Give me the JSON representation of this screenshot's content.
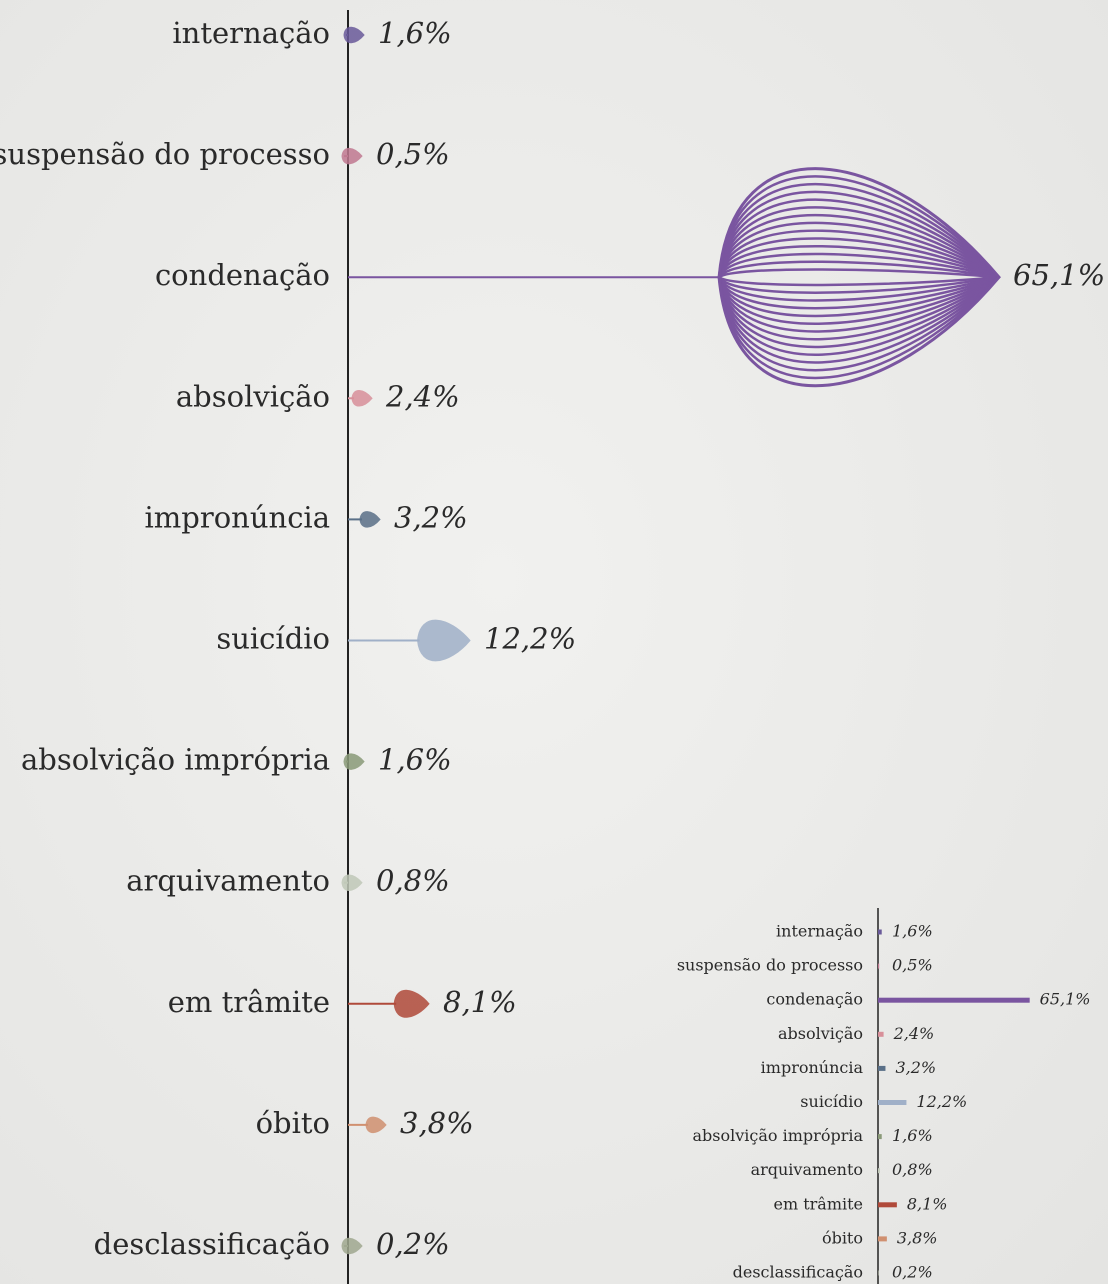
{
  "chart_data": [
    {
      "type": "petal",
      "categories": [
        "internação",
        "suspensão do processo",
        "condenação",
        "absolvição",
        "impronúncia",
        "suicídio",
        "absolvição imprópria",
        "arquivamento",
        "em trâmite",
        "óbito",
        "desclassificação"
      ],
      "values": [
        1.6,
        0.5,
        65.1,
        2.4,
        3.2,
        12.2,
        1.6,
        0.8,
        8.1,
        3.8,
        0.2
      ],
      "value_labels": [
        "1,6%",
        "0,5%",
        "65,1%",
        "2,4%",
        "3,2%",
        "12,2%",
        "1,6%",
        "0,8%",
        "8,1%",
        "3,8%",
        "0,2%"
      ],
      "colors": [
        "#6a5a9a",
        "#c07890",
        "#7a55a0",
        "#d8909a",
        "#5a7088",
        "#a0b0c8",
        "#8a9a78",
        "#c0c8b8",
        "#b04a3a",
        "#d09070",
        "#a0a890"
      ]
    },
    {
      "type": "bar",
      "categories": [
        "internação",
        "suspensão do processo",
        "condenação",
        "absolvição",
        "impronúncia",
        "suicídio",
        "absolvição imprópria",
        "arquivamento",
        "em trâmite",
        "óbito",
        "desclassificação"
      ],
      "values": [
        1.6,
        0.5,
        65.1,
        2.4,
        3.2,
        12.2,
        1.6,
        0.8,
        8.1,
        3.8,
        0.2
      ],
      "value_labels": [
        "1,6%",
        "0,5%",
        "65,1%",
        "2,4%",
        "3,2%",
        "12,2%",
        "1,6%",
        "0,8%",
        "8,1%",
        "3,8%",
        "0,2%"
      ],
      "colors": [
        "#6a5a9a",
        "#c07890",
        "#7a55a0",
        "#d8909a",
        "#5a7088",
        "#a0b0c8",
        "#8a9a78",
        "#c0c8b8",
        "#b04a3a",
        "#d09070",
        "#a0a890"
      ]
    }
  ]
}
